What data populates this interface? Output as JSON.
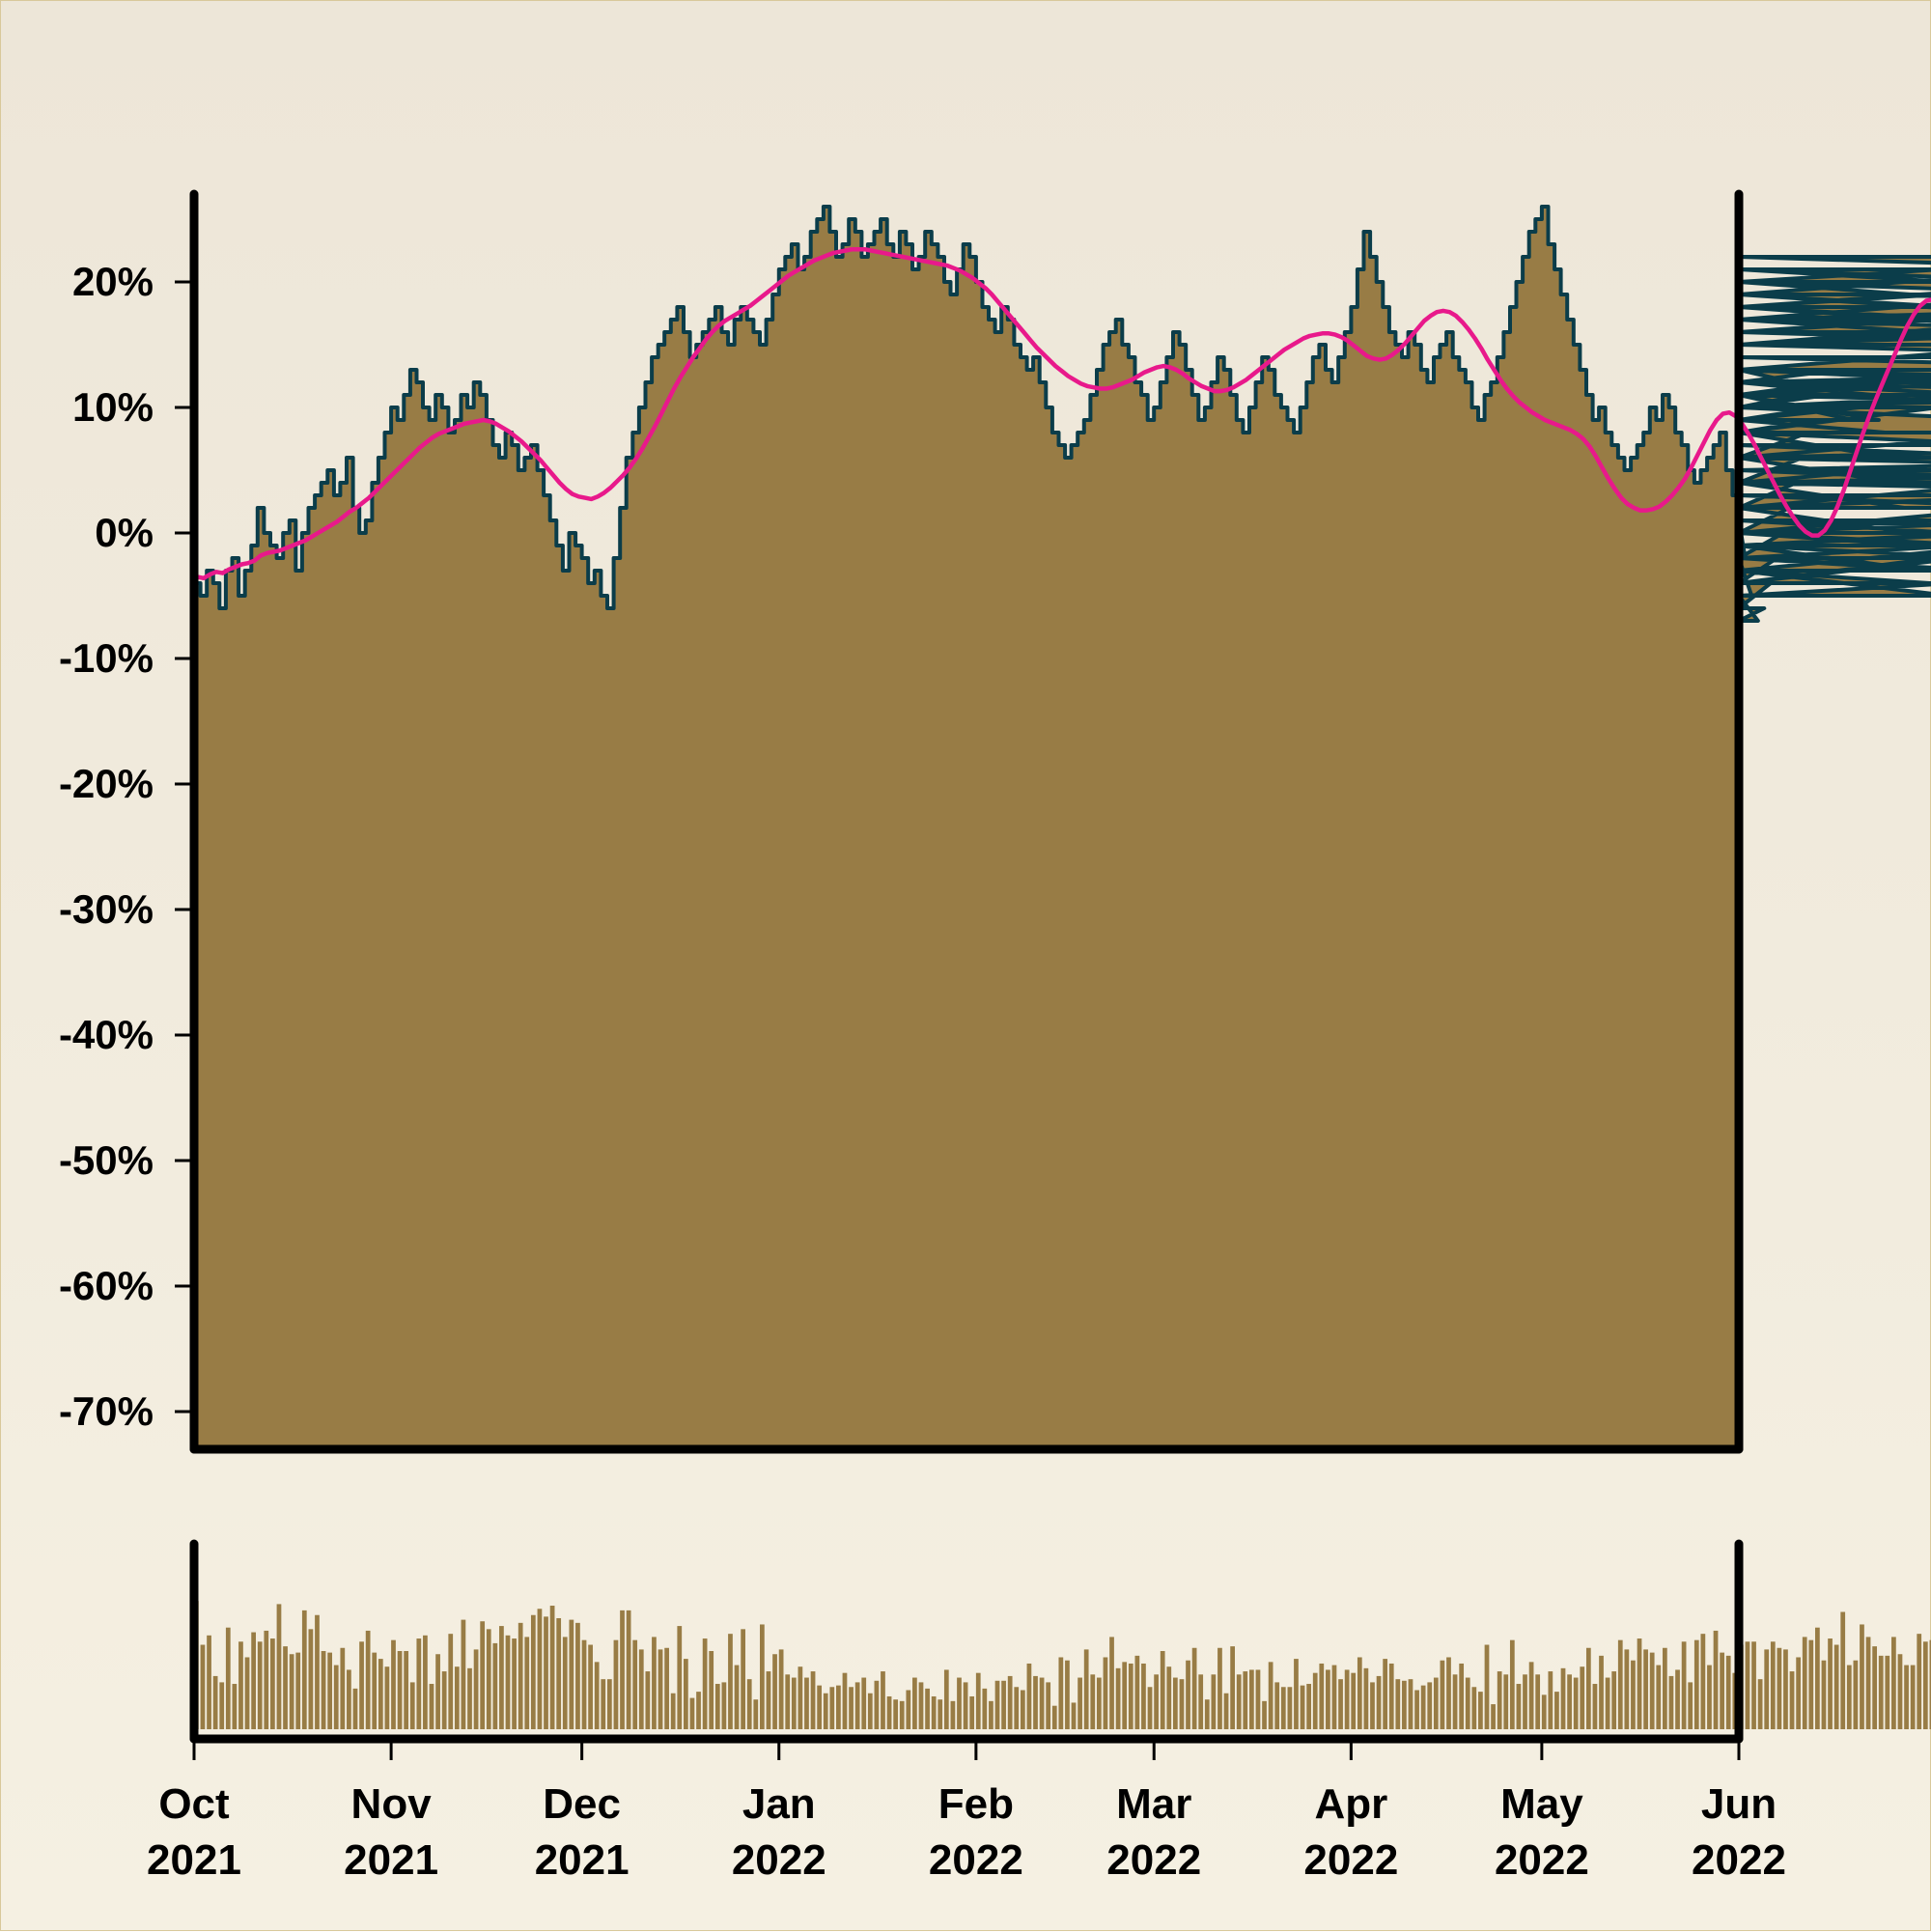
{
  "colors": {
    "background_top": "#ede6d8",
    "background_bottom": "#f5f0e2",
    "area_fill": "#987c45",
    "price_line": "#0b3d4a",
    "moving_average": "#e8198b",
    "volume_bars": "#987c45",
    "axis": "#000000"
  },
  "chart_data": [
    {
      "type": "area",
      "title": "",
      "xlabel": "",
      "ylabel": "",
      "ylim": [
        -73,
        27
      ],
      "yticks": [
        "-70%",
        "-60%",
        "-50%",
        "-40%",
        "-30%",
        "-20%",
        "-10%",
        "0%",
        "10%",
        "20%"
      ],
      "ytick_values": [
        -70,
        -60,
        -50,
        -40,
        -30,
        -20,
        -10,
        0,
        10,
        20
      ],
      "xlim": [
        "2021-10-01",
        "2022-06-01"
      ],
      "grid": false,
      "legend": "none",
      "x_step": "1 day",
      "x_start": "2021-10-01",
      "series": [
        {
          "kind": "area-step",
          "values": [
            -4,
            -5,
            -3,
            -4,
            -6,
            -3,
            -2,
            -5,
            -3,
            -1,
            2,
            0,
            -1,
            -2,
            0,
            1,
            -3,
            0,
            2,
            3,
            4,
            5,
            3,
            4,
            6,
            2,
            0,
            1,
            4,
            6,
            8,
            10,
            9,
            11,
            13,
            12,
            10,
            9,
            11,
            10,
            8,
            9,
            11,
            10,
            12,
            11,
            9,
            7,
            6,
            8,
            7,
            5,
            6,
            7,
            5,
            3,
            1,
            -1,
            -3,
            0,
            -1,
            -2,
            -4,
            -3,
            -5,
            -6,
            -2,
            2,
            6,
            8,
            10,
            12,
            14,
            15,
            16,
            17,
            18,
            16,
            14,
            15,
            16,
            17,
            18,
            16,
            15,
            17,
            18,
            17,
            16,
            15,
            17,
            19,
            21,
            22,
            23,
            21,
            22,
            24,
            25,
            26,
            24,
            22,
            23,
            25,
            24,
            22,
            23,
            24,
            25,
            23,
            22,
            24,
            23,
            21,
            22,
            24,
            23,
            22,
            20,
            19,
            21,
            23,
            22,
            20,
            18,
            17,
            16,
            18,
            17,
            15,
            14,
            13,
            14,
            12,
            10,
            8,
            7,
            6,
            7,
            8,
            9,
            11,
            13,
            15,
            16,
            17,
            15,
            14,
            12,
            11,
            9,
            10,
            12,
            14,
            16,
            15,
            13,
            11,
            9,
            10,
            12,
            14,
            13,
            11,
            9,
            8,
            10,
            12,
            14,
            13,
            11,
            10,
            9,
            8,
            10,
            12,
            14,
            15,
            13,
            12,
            14,
            16,
            18,
            21,
            24,
            22,
            20,
            18,
            16,
            15,
            14,
            16,
            15,
            13,
            12,
            14,
            15,
            16,
            14,
            13,
            12,
            10,
            9,
            11,
            12,
            14,
            16,
            18,
            20,
            22,
            24,
            25,
            26,
            23,
            21,
            19,
            17,
            15,
            13,
            11,
            9,
            10,
            8,
            7,
            6,
            5,
            6,
            7,
            8,
            10,
            9,
            11,
            10,
            8,
            7,
            5,
            4,
            5,
            6,
            7,
            8,
            5,
            3,
            1,
            -2,
            -5,
            -7,
            -6,
            -4,
            -2,
            0,
            2,
            4,
            6,
            8,
            9,
            10,
            11,
            12,
            13,
            11,
            9,
            10,
            12,
            11,
            9,
            8,
            6,
            4,
            2,
            0,
            -1,
            -3,
            -4,
            -2,
            -3,
            -5,
            -4,
            -2,
            -1,
            0,
            -1,
            -2,
            -3,
            -1,
            0,
            2,
            4,
            6,
            8,
            11,
            13,
            15,
            17,
            19,
            21,
            20,
            18,
            16,
            18,
            20,
            19,
            17,
            15,
            16,
            18,
            20,
            22,
            21,
            19,
            17,
            16,
            15,
            17,
            18,
            16,
            15,
            14,
            13,
            12,
            10,
            11,
            13,
            12,
            11,
            10,
            12,
            13,
            11,
            10,
            8,
            6,
            5,
            4,
            5,
            6,
            7,
            5,
            3,
            1,
            0,
            2,
            4,
            3,
            1,
            -2
          ]
        },
        {
          "kind": "moving-average",
          "values": [
            -3.5,
            -3.6,
            -3.3,
            -3.1,
            -3.2,
            -2.9,
            -2.7,
            -2.5,
            -2.4,
            -2.2,
            -1.8,
            -1.6,
            -1.5,
            -1.4,
            -1.2,
            -1.0,
            -0.8,
            -0.6,
            -0.3,
            0.0,
            0.3,
            0.6,
            0.9,
            1.3,
            1.7,
            2.0,
            2.4,
            2.8,
            3.3,
            3.8,
            4.3,
            4.8,
            5.3,
            5.8,
            6.3,
            6.8,
            7.2,
            7.6,
            7.9,
            8.1,
            8.3,
            8.5,
            8.7,
            8.8,
            8.9,
            9.0,
            8.9,
            8.7,
            8.4,
            8.1,
            7.7,
            7.3,
            6.8,
            6.3,
            5.8,
            5.2,
            4.6,
            4.0,
            3.5,
            3.1,
            2.9,
            2.8,
            2.7,
            2.9,
            3.2,
            3.6,
            4.1,
            4.6,
            5.2,
            5.9,
            6.7,
            7.6,
            8.5,
            9.5,
            10.5,
            11.5,
            12.4,
            13.2,
            14.0,
            14.7,
            15.4,
            16.0,
            16.5,
            16.9,
            17.2,
            17.5,
            17.8,
            18.1,
            18.5,
            18.9,
            19.3,
            19.7,
            20.1,
            20.5,
            20.8,
            21.1,
            21.4,
            21.7,
            21.9,
            22.1,
            22.3,
            22.4,
            22.5,
            22.6,
            22.6,
            22.6,
            22.5,
            22.4,
            22.3,
            22.2,
            22.1,
            22.0,
            21.9,
            21.8,
            21.7,
            21.6,
            21.5,
            21.4,
            21.3,
            21.1,
            20.9,
            20.6,
            20.3,
            19.9,
            19.5,
            19.0,
            18.4,
            17.8,
            17.2,
            16.6,
            16.0,
            15.4,
            14.8,
            14.3,
            13.8,
            13.3,
            12.9,
            12.5,
            12.2,
            11.9,
            11.7,
            11.6,
            11.5,
            11.5,
            11.6,
            11.8,
            12.0,
            12.2,
            12.5,
            12.8,
            13.0,
            13.2,
            13.3,
            13.2,
            13.0,
            12.7,
            12.3,
            12.0,
            11.7,
            11.5,
            11.3,
            11.3,
            11.4,
            11.6,
            11.9,
            12.2,
            12.6,
            13.0,
            13.4,
            13.8,
            14.2,
            14.6,
            14.9,
            15.2,
            15.5,
            15.7,
            15.8,
            15.9,
            15.9,
            15.8,
            15.6,
            15.3,
            14.9,
            14.5,
            14.1,
            13.9,
            13.8,
            13.9,
            14.2,
            14.6,
            15.1,
            15.7,
            16.3,
            16.9,
            17.3,
            17.6,
            17.7,
            17.6,
            17.3,
            16.8,
            16.2,
            15.5,
            14.7,
            13.8,
            13.0,
            12.2,
            11.5,
            10.9,
            10.4,
            10.0,
            9.6,
            9.3,
            9.0,
            8.8,
            8.6,
            8.4,
            8.2,
            7.9,
            7.5,
            6.9,
            6.1,
            5.2,
            4.3,
            3.5,
            2.8,
            2.3,
            2.0,
            1.8,
            1.8,
            1.9,
            2.1,
            2.5,
            3.0,
            3.6,
            4.3,
            5.2,
            6.2,
            7.2,
            8.2,
            9.0,
            9.5,
            9.6,
            9.3,
            8.7,
            7.9,
            7.0,
            6.0,
            5.0,
            4.0,
            3.0,
            2.1,
            1.3,
            0.6,
            0.1,
            -0.2,
            -0.2,
            0.2,
            1.0,
            2.1,
            3.4,
            4.9,
            6.4,
            7.9,
            9.3,
            10.6,
            11.8,
            13.0,
            14.2,
            15.4,
            16.5,
            17.4,
            18.1,
            18.5,
            18.6,
            18.5,
            18.2,
            17.8,
            17.4,
            16.9,
            16.5,
            16.1,
            15.8,
            15.4,
            15.0,
            14.5,
            14.0,
            13.4,
            12.7,
            12.0,
            11.2,
            10.4,
            9.6,
            8.8,
            8.0,
            7.3,
            6.7
          ]
        }
      ]
    },
    {
      "type": "bar",
      "title": "",
      "xlabel": "",
      "ylabel": "",
      "yticks": [],
      "xticks": [
        {
          "date": "2021-10-01",
          "month": "Oct",
          "year": "2021"
        },
        {
          "date": "2021-11-01",
          "month": "Nov",
          "year": "2021"
        },
        {
          "date": "2021-12-01",
          "month": "Dec",
          "year": "2021"
        },
        {
          "date": "2022-01-01",
          "month": "Jan",
          "year": "2022"
        },
        {
          "date": "2022-02-01",
          "month": "Feb",
          "year": "2022"
        },
        {
          "date": "2022-03-01",
          "month": "Mar",
          "year": "2022"
        },
        {
          "date": "2022-04-01",
          "month": "Apr",
          "year": "2022"
        },
        {
          "date": "2022-05-01",
          "month": "May",
          "year": "2022"
        },
        {
          "date": "2022-06-01",
          "month": "Jun",
          "year": "2022"
        }
      ],
      "series": [
        {
          "kind": "volume",
          "values": [
            82,
            54,
            60,
            34,
            30,
            65,
            29,
            56,
            46,
            62,
            56,
            63,
            58,
            80,
            53,
            48,
            49,
            76,
            64,
            73,
            50,
            49,
            41,
            52,
            38,
            26,
            56,
            63,
            49,
            45,
            40,
            57,
            50,
            50,
            30,
            58,
            60,
            29,
            48,
            37,
            61,
            40,
            70,
            39,
            51,
            69,
            64,
            55,
            66,
            60,
            58,
            68,
            59,
            73,
            77,
            72,
            79,
            71,
            59,
            70,
            68,
            57,
            54,
            43,
            32,
            32,
            57,
            76,
            76,
            57,
            51,
            37,
            59,
            51,
            52,
            23,
            66,
            45,
            20,
            24,
            58,
            50,
            29,
            30,
            61,
            41,
            64,
            32,
            19,
            67,
            37,
            48,
            51,
            35,
            33,
            40,
            33,
            37,
            28,
            23,
            27,
            28,
            36,
            27,
            30,
            33,
            23,
            31,
            37,
            21,
            19,
            18,
            25,
            33,
            30,
            26,
            21,
            19,
            38,
            18,
            33,
            30,
            21,
            36,
            26,
            18,
            31,
            31,
            34,
            27,
            25,
            42,
            34,
            33,
            30,
            15,
            46,
            44,
            17,
            33,
            51,
            35,
            33,
            46,
            59,
            39,
            43,
            42,
            47,
            42,
            27,
            35,
            50,
            40,
            33,
            32,
            44,
            52,
            35,
            19,
            35,
            52,
            23,
            53,
            35,
            37,
            38,
            38,
            18,
            43,
            30,
            27,
            27,
            45,
            28,
            29,
            36,
            42,
            38,
            41,
            32,
            38,
            36,
            46,
            39,
            30,
            34,
            45,
            42,
            32,
            31,
            32,
            25,
            28,
            30,
            33,
            44,
            46,
            35,
            42,
            33,
            27,
            24,
            54,
            16,
            37,
            35,
            57,
            29,
            35,
            43,
            35,
            22,
            37,
            24,
            39,
            35,
            33,
            40,
            52,
            29,
            47,
            33,
            37,
            57,
            51,
            44,
            58,
            51,
            49,
            41,
            52,
            34,
            38,
            56,
            30,
            57,
            61,
            41,
            63,
            49,
            47,
            36,
            54,
            56,
            56,
            32,
            51,
            56,
            52,
            51,
            37,
            46,
            59,
            57,
            65,
            44,
            58,
            54,
            75,
            41,
            44,
            67,
            59,
            53,
            47,
            47,
            59,
            48,
            41,
            41,
            61,
            56,
            57,
            48,
            60,
            52,
            60,
            51,
            67,
            58,
            59,
            55,
            73,
            68,
            74,
            66,
            68,
            73,
            68,
            63,
            63,
            43,
            46,
            53,
            63,
            56,
            58,
            53,
            54,
            48,
            38,
            40,
            57,
            50,
            40,
            53,
            41,
            44,
            48,
            40,
            40,
            29,
            35,
            35,
            39,
            49,
            45,
            28,
            44,
            45,
            41,
            38,
            45,
            39,
            45,
            45,
            39,
            33,
            42,
            40,
            48,
            48,
            51,
            57,
            35,
            48,
            49,
            52,
            48,
            38,
            44,
            57,
            47,
            37,
            60,
            55,
            55,
            37,
            59,
            55,
            53,
            59,
            60,
            68,
            67,
            65,
            70,
            71,
            67,
            70,
            66
          ]
        }
      ]
    }
  ]
}
